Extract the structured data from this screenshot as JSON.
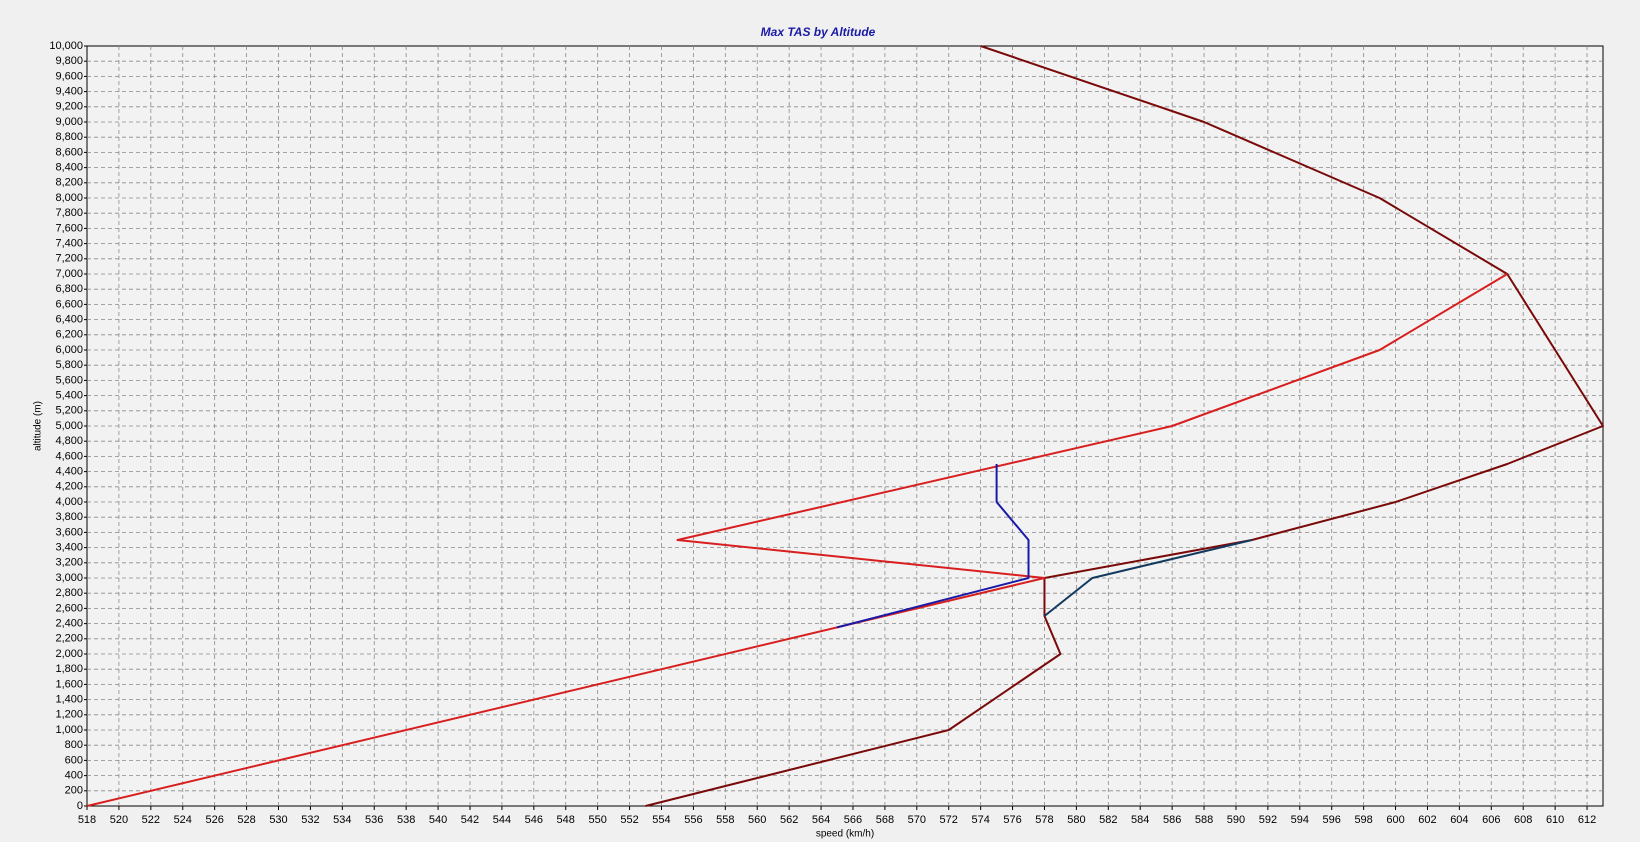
{
  "chart_data": {
    "type": "line",
    "title": "Max TAS by Altitude",
    "x_label": "speed (km/h)",
    "y_label": "altitude (m)",
    "grid": true,
    "series": [
      {
        "color": "#7a0a0a",
        "x": [
          553,
          572,
          579,
          578,
          578,
          591,
          600,
          607,
          613,
          607,
          599,
          588,
          574
        ],
        "values": [
          0,
          1000,
          2000,
          2500,
          3000,
          3500,
          4000,
          4500,
          5000,
          7000,
          8000,
          9000,
          10000
        ]
      },
      {
        "color": "#d81e1e",
        "x": [
          518,
          578,
          555,
          586,
          599,
          607
        ],
        "values": [
          0,
          3000,
          3500,
          5000,
          6000,
          7000
        ]
      },
      {
        "color": "#1a1aa8",
        "x": [
          575,
          575,
          577,
          577,
          565
        ],
        "values": [
          4500,
          4000,
          3500,
          3000,
          2350
        ]
      },
      {
        "color": "#123a5e",
        "x": [
          578,
          581,
          591
        ],
        "values": [
          2500,
          3000,
          3500
        ]
      }
    ],
    "xlim": [
      518,
      613
    ],
    "xticks": [
      518,
      520,
      522,
      524,
      526,
      528,
      530,
      532,
      534,
      536,
      538,
      540,
      542,
      544,
      546,
      548,
      550,
      552,
      554,
      556,
      558,
      560,
      562,
      564,
      566,
      568,
      570,
      572,
      574,
      576,
      578,
      580,
      582,
      584,
      586,
      588,
      590,
      592,
      594,
      596,
      598,
      600,
      602,
      604,
      606,
      608,
      610,
      612
    ],
    "ylim": [
      0,
      10000
    ],
    "yticks": [
      0,
      200,
      400,
      600,
      800,
      {
        "value": 1000,
        "label": "1,000"
      },
      {
        "value": 1200,
        "label": "1,200"
      },
      {
        "value": 1400,
        "label": "1,400"
      },
      {
        "value": 1600,
        "label": "1,600"
      },
      {
        "value": 1800,
        "label": "1,800"
      },
      {
        "value": 2000,
        "label": "2,000"
      },
      {
        "value": 2200,
        "label": "2,200"
      },
      {
        "value": 2400,
        "label": "2,400"
      },
      {
        "value": 2600,
        "label": "2,600"
      },
      {
        "value": 2800,
        "label": "2,800"
      },
      {
        "value": 3000,
        "label": "3,000"
      },
      {
        "value": 3200,
        "label": "3,200"
      },
      {
        "value": 3400,
        "label": "3,400"
      },
      {
        "value": 3600,
        "label": "3,600"
      },
      {
        "value": 3800,
        "label": "3,800"
      },
      {
        "value": 4000,
        "label": "4,000"
      },
      {
        "value": 4200,
        "label": "4,200"
      },
      {
        "value": 4400,
        "label": "4,400"
      },
      {
        "value": 4600,
        "label": "4,600"
      },
      {
        "value": 4800,
        "label": "4,800"
      },
      {
        "value": 5000,
        "label": "5,000"
      },
      {
        "value": 5200,
        "label": "5,200"
      },
      {
        "value": 5400,
        "label": "5,400"
      },
      {
        "value": 5600,
        "label": "5,600"
      },
      {
        "value": 5800,
        "label": "5,800"
      },
      {
        "value": 6000,
        "label": "6,000"
      },
      {
        "value": 6200,
        "label": "6,200"
      },
      {
        "value": 6400,
        "label": "6,400"
      },
      {
        "value": 6600,
        "label": "6,600"
      },
      {
        "value": 6800,
        "label": "6,800"
      },
      {
        "value": 7000,
        "label": "7,000"
      },
      {
        "value": 7200,
        "label": "7,200"
      },
      {
        "value": 7400,
        "label": "7,400"
      },
      {
        "value": 7600,
        "label": "7,600"
      },
      {
        "value": 7800,
        "label": "7,800"
      },
      {
        "value": 8000,
        "label": "8,000"
      },
      {
        "value": 8200,
        "label": "8,200"
      },
      {
        "value": 8400,
        "label": "8,400"
      },
      {
        "value": 8600,
        "label": "8,600"
      },
      {
        "value": 8800,
        "label": "8,800"
      },
      {
        "value": 9000,
        "label": "9,000"
      },
      {
        "value": 9200,
        "label": "9,200"
      },
      {
        "value": 9400,
        "label": "9,400"
      },
      {
        "value": 9600,
        "label": "9,600"
      },
      {
        "value": 9800,
        "label": "9,800"
      },
      {
        "value": 10000,
        "label": "10,000"
      }
    ]
  }
}
